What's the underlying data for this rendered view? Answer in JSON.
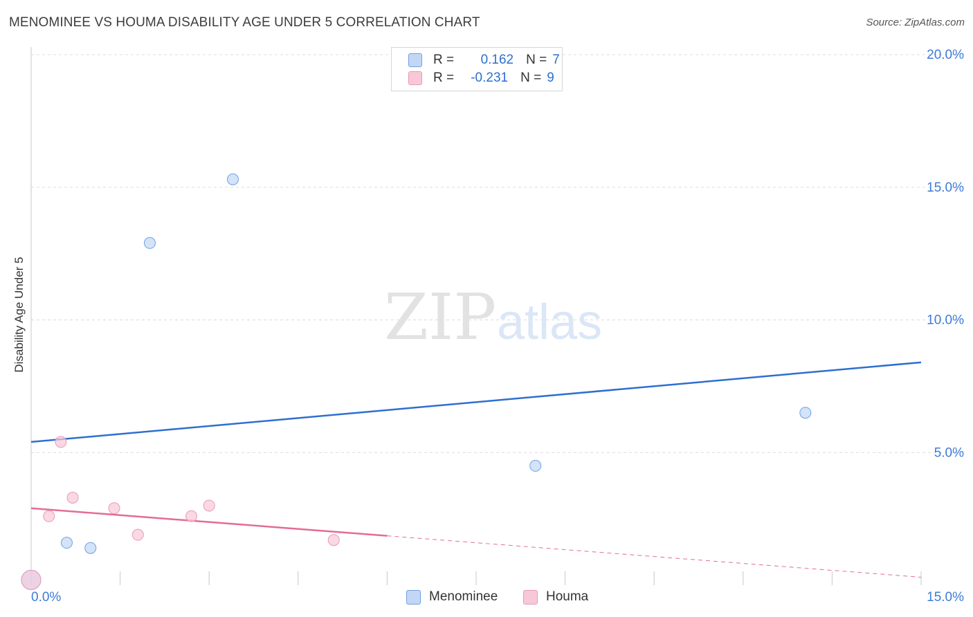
{
  "chart_data": {
    "type": "scatter",
    "title": "MENOMINEE VS HOUMA DISABILITY AGE UNDER 5 CORRELATION CHART",
    "source": "Source: ZipAtlas.com",
    "xlabel": "",
    "ylabel": "Disability Age Under 5",
    "xlim": [
      0,
      15
    ],
    "ylim": [
      0,
      20
    ],
    "x_tick_labels": [
      "0.0%",
      "15.0%"
    ],
    "y_ticks": [
      5,
      10,
      15,
      20
    ],
    "y_tick_labels": [
      "5.0%",
      "10.0%",
      "15.0%",
      "20.0%"
    ],
    "grid": true,
    "watermark": {
      "zip": "ZIP",
      "atlas": "atlas"
    },
    "colors": {
      "menominee": "#2d6fd0",
      "houma": "#e46b98",
      "menominee_fill": "#c2d7f5",
      "houma_fill": "#f8c8d8",
      "axis_text": "#3d7bd8",
      "grid": "#dcdcdc"
    },
    "legend": [
      {
        "name": "Menominee",
        "r_label": "R =",
        "r": "0.162",
        "n_label": "N =",
        "n": "7"
      },
      {
        "name": "Houma",
        "r_label": "R =",
        "r": "-0.231",
        "n_label": "N =",
        "n": "9"
      }
    ],
    "series": [
      {
        "name": "Menominee",
        "points": [
          [
            0.0,
            0.2
          ],
          [
            0.6,
            1.6
          ],
          [
            1.0,
            1.4
          ],
          [
            2.0,
            12.9
          ],
          [
            3.4,
            15.3
          ],
          [
            8.5,
            4.5
          ],
          [
            13.05,
            6.5
          ]
        ],
        "trend": {
          "x0": 0,
          "y0": 5.4,
          "x1": 15,
          "y1": 8.4,
          "dashed_from": null
        }
      },
      {
        "name": "Houma",
        "points": [
          [
            0.0,
            0.2
          ],
          [
            0.3,
            2.6
          ],
          [
            0.5,
            5.4
          ],
          [
            0.7,
            3.3
          ],
          [
            1.4,
            2.9
          ],
          [
            1.8,
            1.9
          ],
          [
            2.7,
            2.6
          ],
          [
            3.0,
            3.0
          ],
          [
            5.1,
            1.7
          ]
        ],
        "trend": {
          "x0": 0,
          "y0": 2.9,
          "x1": 15,
          "y1": 0.3,
          "dashed_from": 6.0
        }
      }
    ]
  }
}
